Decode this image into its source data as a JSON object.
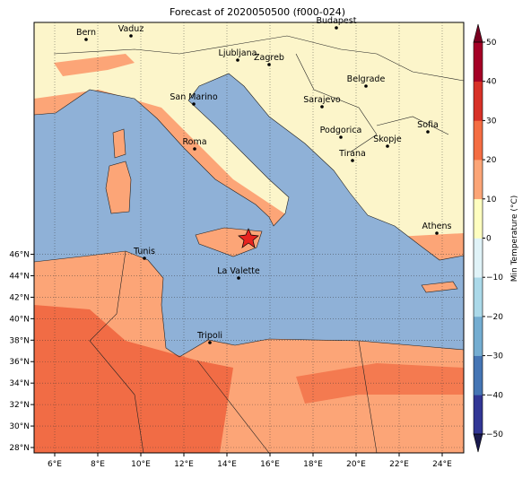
{
  "title": "Forecast of 2020050500 (f000-024)",
  "map": {
    "lon_ticks": [
      "6°E",
      "8°E",
      "10°E",
      "12°E",
      "14°E",
      "16°E",
      "18°E",
      "20°E",
      "22°E",
      "24°E"
    ],
    "lat_ticks": [
      "28°N",
      "30°N",
      "32°N",
      "34°N",
      "36°N",
      "38°N",
      "40°N",
      "42°N",
      "44°N",
      "46°N"
    ],
    "cities": [
      "Bern",
      "Vaduz",
      "Budapest",
      "Ljubljana",
      "Zagreb",
      "Belgrade",
      "San Marino",
      "Sarajevo",
      "Sofia",
      "Podgorica",
      "Skopje",
      "Roma",
      "Tirana",
      "Athens",
      "Tunis",
      "La Valette",
      "Tripoli"
    ]
  },
  "colorbar": {
    "label": "Min Temperature (°C)",
    "ticks": [
      "−50",
      "−40",
      "−30",
      "−20",
      "−10",
      "0",
      "10",
      "20",
      "30",
      "40",
      "50"
    ]
  }
}
